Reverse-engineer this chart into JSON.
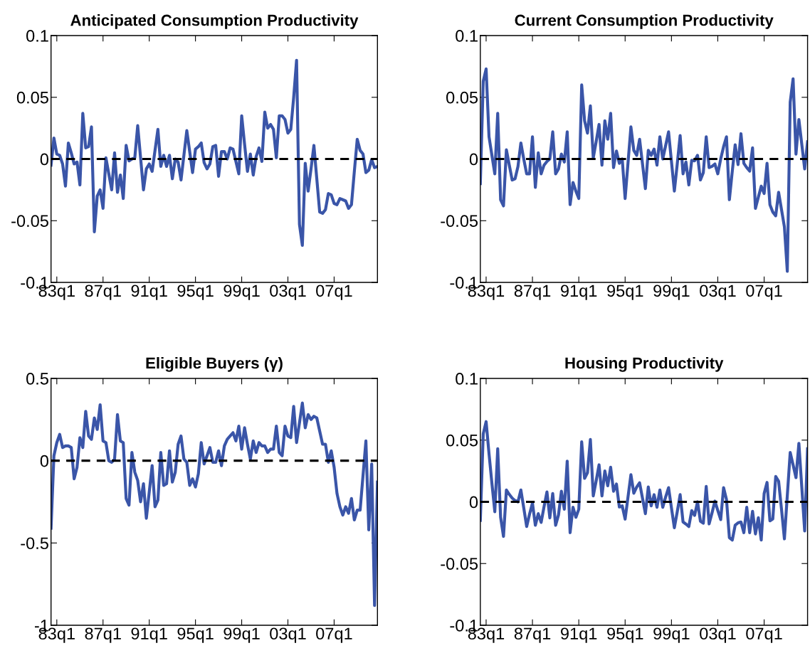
{
  "chart_data": [
    {
      "type": "line",
      "title": "Anticipated Consumption Productivity",
      "categories": [
        null,
        null,
        "83q1",
        null,
        null,
        null,
        null,
        null,
        null,
        null,
        null,
        null,
        null,
        null,
        null,
        null,
        null,
        null,
        "87q1",
        null,
        null,
        null,
        null,
        null,
        null,
        null,
        null,
        null,
        null,
        null,
        null,
        null,
        null,
        null,
        "91q1",
        null,
        null,
        null,
        null,
        null,
        null,
        null,
        null,
        null,
        null,
        null,
        null,
        null,
        null,
        null,
        "95q1",
        null,
        null,
        null,
        null,
        null,
        null,
        null,
        null,
        null,
        null,
        null,
        null,
        null,
        null,
        null,
        "99q1",
        null,
        null,
        null,
        null,
        null,
        null,
        null,
        null,
        null,
        null,
        null,
        null,
        null,
        null,
        null,
        "03q1",
        null,
        null,
        null,
        null,
        null,
        null,
        null,
        null,
        null,
        null,
        null,
        null,
        null,
        null,
        null,
        "07q1",
        null,
        null,
        null,
        null,
        null,
        null,
        null,
        null,
        null,
        null,
        null,
        null,
        null,
        null,
        null
      ],
      "series": [
        {
          "color": "#3a55a8",
          "values": [
            -0.005,
            0.017,
            0.004,
            0.003,
            -0.004,
            -0.022,
            0.013,
            0.005,
            -0.004,
            -0.0025,
            -0.021,
            0.037,
            0.009,
            0.01,
            0.026,
            -0.059,
            -0.03,
            -0.025,
            -0.04,
            0.001,
            -0.012,
            -0.025,
            0.005,
            -0.027,
            -0.013,
            -0.032,
            0.011,
            -0.0015,
            0.0,
            0.001,
            0.027,
            0.001,
            -0.025,
            -0.008,
            -0.004,
            -0.01,
            0.007,
            0.024,
            -0.006,
            0.003,
            -0.006,
            0.003,
            -0.016,
            0.0,
            -0.0025,
            -0.017,
            0.003,
            0.023,
            0.006,
            -0.011,
            0.008,
            0.01,
            0.013,
            -0.003,
            -0.008,
            -0.004,
            0.01,
            0.011,
            -0.014,
            0.006,
            0.006,
            0.0,
            0.009,
            0.008,
            -0.002,
            -0.012,
            0.035,
            0.012,
            -0.01,
            0.004,
            -0.013,
            0.002,
            0.009,
            -0.002,
            0.038,
            0.025,
            0.028,
            0.024,
            0.001,
            0.035,
            0.035,
            0.032,
            0.021,
            0.024,
            0.05,
            0.08,
            -0.053,
            -0.07,
            -0.0035,
            -0.026,
            -0.008,
            0.011,
            -0.016,
            -0.043,
            -0.044,
            -0.041,
            -0.028,
            -0.029,
            -0.036,
            -0.037,
            -0.032,
            -0.033,
            -0.034,
            -0.04,
            -0.037,
            -0.01,
            0.016,
            0.007,
            0.004,
            -0.011,
            -0.009,
            -0.0005,
            -0.007,
            -0.006
          ]
        }
      ],
      "ylim": [
        -0.1,
        0.1
      ],
      "yticks": [
        -0.1,
        -0.05,
        0,
        0.05,
        0.1
      ],
      "ref_lines": [
        {
          "axis": "y",
          "value": 0,
          "color": "#000000",
          "line_style": "dashed"
        }
      ]
    },
    {
      "type": "line",
      "title": "Current Consumption Productivity",
      "categories": [
        null,
        null,
        "83q1",
        null,
        null,
        null,
        null,
        null,
        null,
        null,
        null,
        null,
        null,
        null,
        null,
        null,
        null,
        null,
        "87q1",
        null,
        null,
        null,
        null,
        null,
        null,
        null,
        null,
        null,
        null,
        null,
        null,
        null,
        null,
        null,
        "91q1",
        null,
        null,
        null,
        null,
        null,
        null,
        null,
        null,
        null,
        null,
        null,
        null,
        null,
        null,
        null,
        "95q1",
        null,
        null,
        null,
        null,
        null,
        null,
        null,
        null,
        null,
        null,
        null,
        null,
        null,
        null,
        null,
        "99q1",
        null,
        null,
        null,
        null,
        null,
        null,
        null,
        null,
        null,
        null,
        null,
        null,
        null,
        null,
        null,
        "03q1",
        null,
        null,
        null,
        null,
        null,
        null,
        null,
        null,
        null,
        null,
        null,
        null,
        null,
        null,
        null,
        "07q1",
        null,
        null,
        null,
        null,
        null,
        null,
        null,
        null,
        null,
        null,
        null,
        null,
        null,
        null,
        null
      ],
      "series": [
        {
          "color": "#3a55a8",
          "values": [
            -0.02,
            0.063,
            0.073,
            0.018,
            0.003,
            -0.012,
            0.037,
            -0.033,
            -0.038,
            0.0075,
            -0.005,
            -0.017,
            -0.016,
            -0.006,
            0.013,
            0.0,
            -0.012,
            -0.012,
            0.018,
            -0.023,
            0.005,
            -0.012,
            -0.005,
            -0.002,
            0.0,
            0.022,
            -0.012,
            -0.008,
            0.004,
            -0.0025,
            0.022,
            -0.037,
            -0.019,
            -0.026,
            -0.032,
            0.06,
            0.031,
            0.021,
            0.043,
            0.001,
            0.014,
            0.028,
            -0.005,
            0.031,
            0.016,
            0.037,
            -0.007,
            0.0065,
            -0.0035,
            0.0,
            -0.032,
            -0.003,
            0.026,
            0.007,
            0.003,
            0.016,
            -0.004,
            -0.024,
            0.007,
            0.003,
            0.008,
            -0.005,
            0.018,
            0.0,
            0.011,
            0.022,
            -0.002,
            -0.026,
            -0.004,
            0.019,
            -0.012,
            -0.0025,
            -0.021,
            -0.001,
            -0.0015,
            0.003,
            -0.017,
            -0.011,
            0.018,
            -0.007,
            -0.006,
            -0.004,
            -0.012,
            0.0,
            0.01,
            0.018,
            -0.033,
            -0.01,
            0.0115,
            -0.0045,
            0.0205,
            -0.0035,
            -0.007,
            -0.0098,
            0.009,
            -0.04,
            -0.031,
            -0.022,
            -0.028,
            -0.0035,
            -0.037,
            -0.043,
            -0.046,
            -0.027,
            -0.041,
            -0.055,
            -0.091,
            0.046,
            0.065,
            0.004,
            0.032,
            0.012,
            -0.008,
            0.014
          ]
        }
      ],
      "ylim": [
        -0.1,
        0.1
      ],
      "yticks": [
        -0.1,
        -0.05,
        0,
        0.05,
        0.1
      ],
      "ref_lines": [
        {
          "axis": "y",
          "value": 0,
          "color": "#000000",
          "line_style": "dashed"
        }
      ]
    },
    {
      "type": "line",
      "title": "Eligible Buyers (γ)",
      "categories": [
        null,
        null,
        "83q1",
        null,
        null,
        null,
        null,
        null,
        null,
        null,
        null,
        null,
        null,
        null,
        null,
        null,
        null,
        null,
        "87q1",
        null,
        null,
        null,
        null,
        null,
        null,
        null,
        null,
        null,
        null,
        null,
        null,
        null,
        null,
        null,
        "91q1",
        null,
        null,
        null,
        null,
        null,
        null,
        null,
        null,
        null,
        null,
        null,
        null,
        null,
        null,
        null,
        "95q1",
        null,
        null,
        null,
        null,
        null,
        null,
        null,
        null,
        null,
        null,
        null,
        null,
        null,
        null,
        null,
        "99q1",
        null,
        null,
        null,
        null,
        null,
        null,
        null,
        null,
        null,
        null,
        null,
        null,
        null,
        null,
        null,
        "03q1",
        null,
        null,
        null,
        null,
        null,
        null,
        null,
        null,
        null,
        null,
        null,
        null,
        null,
        null,
        null,
        "07q1",
        null,
        null,
        null,
        null,
        null,
        null,
        null,
        null,
        null,
        null,
        null,
        null,
        null,
        null,
        null
      ],
      "series": [
        {
          "color": "#3a55a8",
          "values": [
            -0.41,
            0.03,
            0.11,
            0.16,
            0.08,
            0.09,
            0.09,
            0.08,
            -0.11,
            -0.04,
            0.14,
            0.08,
            0.3,
            0.15,
            0.13,
            0.26,
            0.19,
            0.34,
            0.12,
            0.11,
            0.0,
            -0.01,
            0.01,
            0.28,
            0.12,
            0.11,
            -0.23,
            -0.27,
            0.05,
            -0.07,
            -0.12,
            -0.25,
            -0.14,
            -0.35,
            -0.19,
            -0.03,
            -0.28,
            -0.24,
            0.05,
            -0.15,
            -0.14,
            0.06,
            -0.13,
            -0.07,
            0.1,
            0.15,
            0.01,
            -0.01,
            -0.15,
            -0.11,
            -0.16,
            -0.08,
            0.11,
            -0.02,
            0.03,
            0.08,
            -0.01,
            -0.01,
            0.06,
            -0.03,
            0.09,
            0.13,
            0.15,
            0.17,
            0.12,
            0.21,
            0.07,
            0.2,
            0.1,
            0.01,
            0.12,
            0.05,
            0.11,
            0.09,
            0.09,
            0.05,
            0.07,
            0.07,
            0.21,
            0.05,
            0.03,
            0.21,
            0.15,
            0.14,
            0.33,
            0.11,
            0.23,
            0.35,
            0.2,
            0.28,
            0.25,
            0.27,
            0.26,
            0.18,
            0.1,
            0.1,
            -0.01,
            0.06,
            -0.04,
            -0.2,
            -0.28,
            -0.33,
            -0.28,
            -0.32,
            -0.23,
            -0.36,
            -0.3,
            -0.3,
            -0.09,
            0.12,
            -0.42,
            -0.02,
            -0.88,
            -0.13
          ]
        }
      ],
      "ylim": [
        -1,
        0.5
      ],
      "yticks": [
        -1,
        -0.5,
        0,
        0.5
      ],
      "ref_lines": [
        {
          "axis": "y",
          "value": 0,
          "color": "#000000",
          "line_style": "dashed"
        }
      ]
    },
    {
      "type": "line",
      "title": "Housing Productivity",
      "categories": [
        null,
        null,
        "83q1",
        null,
        null,
        null,
        null,
        null,
        null,
        null,
        null,
        null,
        null,
        null,
        null,
        null,
        null,
        null,
        "87q1",
        null,
        null,
        null,
        null,
        null,
        null,
        null,
        null,
        null,
        null,
        null,
        null,
        null,
        null,
        null,
        "91q1",
        null,
        null,
        null,
        null,
        null,
        null,
        null,
        null,
        null,
        null,
        null,
        null,
        null,
        null,
        null,
        "95q1",
        null,
        null,
        null,
        null,
        null,
        null,
        null,
        null,
        null,
        null,
        null,
        null,
        null,
        null,
        null,
        "99q1",
        null,
        null,
        null,
        null,
        null,
        null,
        null,
        null,
        null,
        null,
        null,
        null,
        null,
        null,
        null,
        "03q1",
        null,
        null,
        null,
        null,
        null,
        null,
        null,
        null,
        null,
        null,
        null,
        null,
        null,
        null,
        null,
        "07q1",
        null,
        null,
        null,
        null,
        null,
        null,
        null,
        null,
        null,
        null,
        null,
        null,
        null,
        null,
        null
      ],
      "series": [
        {
          "color": "#3a55a8",
          "values": [
            -0.015,
            0.055,
            0.065,
            0.039,
            0.015,
            -0.008,
            0.043,
            -0.0125,
            -0.028,
            0.0096,
            0.006,
            0.003,
            0.001,
            0.0,
            0.0096,
            -0.005,
            -0.02,
            -0.01,
            -0.001,
            -0.019,
            -0.0096,
            -0.0167,
            -0.004,
            0.008,
            -0.013,
            0.0067,
            -0.019,
            -0.0106,
            0.0086,
            -0.006,
            0.033,
            -0.025,
            -0.0044,
            -0.0125,
            -0.006,
            0.0486,
            0.019,
            0.0236,
            0.0505,
            0.0048,
            0.017,
            0.03,
            0.0048,
            0.025,
            0.013,
            0.028,
            0.0086,
            0.0144,
            -0.0042,
            -0.0033,
            -0.014,
            0.004,
            0.022,
            0.007,
            0.012,
            0.0154,
            0.003,
            -0.0096,
            0.0121,
            -0.0033,
            0.0058,
            -0.0044,
            0.0096,
            -0.0044,
            0.004,
            0.0115,
            -0.005,
            -0.021,
            -0.008,
            0.0058,
            -0.0163,
            -0.018,
            -0.02,
            -0.0071,
            -0.011,
            0.0,
            -0.0157,
            -0.0173,
            0.0125,
            -0.0179,
            -0.009,
            0.0006,
            -0.007,
            -0.0144,
            0.0115,
            0.0019,
            -0.029,
            -0.031,
            -0.019,
            -0.017,
            -0.0163,
            -0.025,
            -0.0044,
            -0.025,
            -0.0077,
            -0.026,
            -0.0129,
            -0.031,
            0.0067,
            0.0157,
            -0.0154,
            -0.0138,
            0.0205,
            0.0167,
            -0.006,
            -0.03,
            0.005,
            0.04,
            0.03,
            0.0196,
            0.0474,
            0.012,
            -0.0236,
            0.043
          ]
        }
      ],
      "ylim": [
        -0.1,
        0.1
      ],
      "yticks": [
        -0.1,
        -0.05,
        0,
        0.05,
        0.1
      ],
      "ref_lines": [
        {
          "axis": "y",
          "value": 0,
          "color": "#000000",
          "line_style": "dashed"
        }
      ]
    }
  ]
}
